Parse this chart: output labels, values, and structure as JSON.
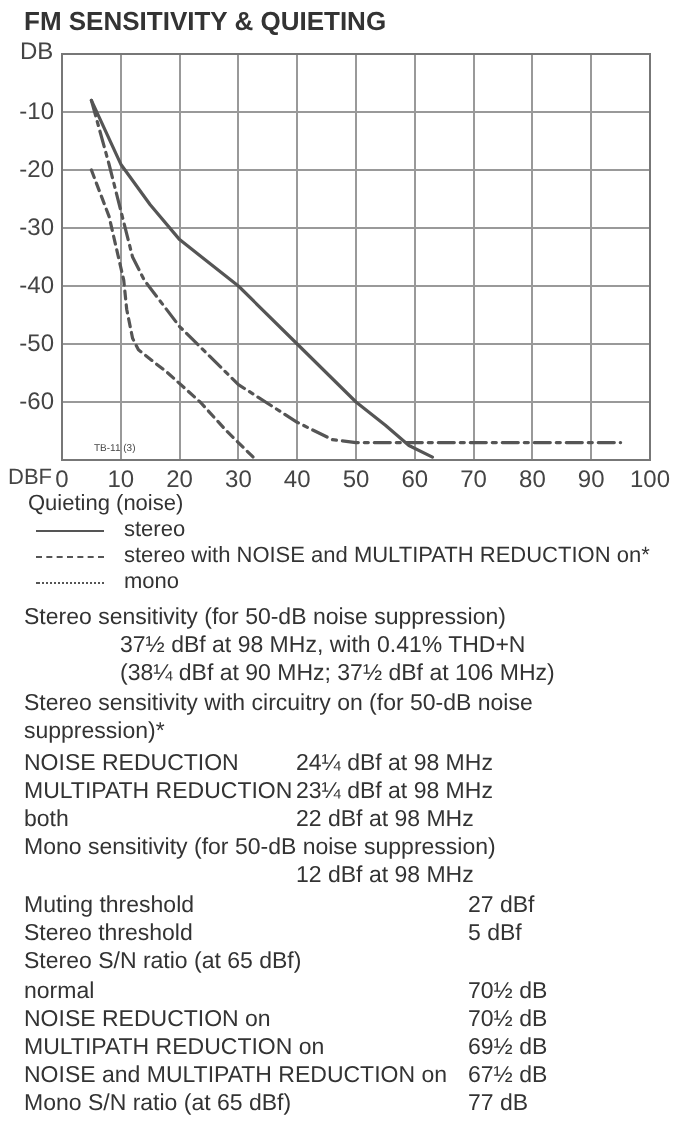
{
  "chart_data": {
    "type": "line",
    "title": "FM SENSITIVITY & QUIETING",
    "xlabel": "DBF",
    "ylabel": "DB",
    "legend_title": "Quieting (noise)",
    "legend": "bottom",
    "grid": true,
    "marker": "none",
    "xlim": [
      0,
      100
    ],
    "xticks": [
      0,
      10,
      20,
      30,
      40,
      50,
      60,
      70,
      80,
      90,
      100
    ],
    "ylim": [
      -70,
      0
    ],
    "yticks": [
      -10,
      -20,
      -30,
      -40,
      -50,
      -60
    ],
    "series": [
      {
        "name": "stereo",
        "color": "#555555",
        "line_style": "solid",
        "x": [
          5,
          10,
          15,
          20,
          30,
          40,
          50,
          55,
          59,
          63
        ],
        "values": [
          -8,
          -19,
          -26,
          -32,
          -40,
          -50,
          -60,
          -64,
          -67.5,
          -69.5
        ]
      },
      {
        "name": "stereo with NOISE and MULTIPATH REDUCTION on*",
        "color": "#555555",
        "line_style": "dashed",
        "x": [
          5,
          8,
          10.5,
          12,
          14,
          20,
          30,
          40,
          46,
          50,
          60,
          70,
          80,
          95
        ],
        "values": [
          -8,
          -19,
          -29,
          -35,
          -39,
          -47,
          -57,
          -63.5,
          -66.5,
          -67,
          -67,
          -67,
          -67,
          -67
        ]
      },
      {
        "name": "mono",
        "color": "#555555",
        "line_style": "dotted",
        "x": [
          5,
          8,
          10.5,
          11,
          12,
          13,
          18,
          23.5,
          28,
          32.5
        ],
        "values": [
          -20,
          -28,
          -39,
          -44,
          -49,
          -51,
          -55,
          -60,
          -65,
          -69.5
        ]
      }
    ],
    "annotations": [
      "TB-11 (3)",
      "Stereo sensitivity (for 50-dB noise suppression)",
      "37½ dBf at 98 MHz, with 0.41% THD+N",
      "(38¼ dBf at 90 MHz; 37½ dBf at 106 MHz)",
      "Stereo sensitivity with circuitry on (for 50-dB noise suppression)*",
      "NOISE REDUCTION",
      "24¼ dBf at 98 MHz",
      "MULTIPATH REDUCTION",
      "23¼ dBf at 98 MHz",
      "both",
      "22 dBf at 98 MHz",
      "Mono sensitivity (for 50-dB noise suppression)",
      "12 dBf at 98 MHz",
      "Muting threshold",
      "27 dBf",
      "Stereo threshold",
      "5 dBf",
      "Stereo S/N ratio (at 65 dBf)",
      "normal",
      "70½ dB",
      "NOISE REDUCTION on",
      "70½ dB",
      "MULTIPATH REDUCTION on",
      "69½ dB",
      "NOISE and MULTIPATH REDUCTION on",
      "67½ dB",
      "Mono S/N ratio (at 65 dBf)",
      "77 dB"
    ]
  }
}
